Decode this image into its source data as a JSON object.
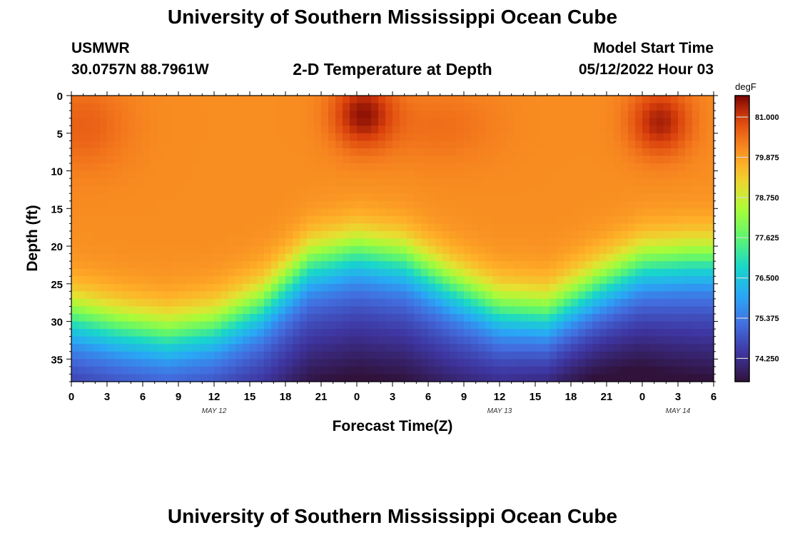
{
  "header": {
    "title": "University of Southern Mississippi Ocean Cube",
    "station": "USMWR",
    "coordinates": "30.0757N  88.7961W",
    "chart_title": "2-D Temperature at Depth",
    "model_label": "Model Start Time",
    "model_time": "05/12/2022 Hour 03"
  },
  "footer": {
    "title": "University of Southern Mississippi Ocean Cube"
  },
  "chart_data": {
    "type": "heatmap",
    "title": "2-D Temperature at Depth",
    "xlabel": "Forecast Time(Z)",
    "ylabel": "Depth (ft)",
    "x_unit": "hours since 2022-05-12 00Z",
    "xlim": [
      0,
      54
    ],
    "ylim": [
      0,
      38
    ],
    "y_inverted": true,
    "x_ticks": [
      0,
      3,
      6,
      9,
      12,
      15,
      18,
      21,
      24,
      27,
      30,
      33,
      36,
      39,
      42,
      45,
      48,
      51,
      54
    ],
    "x_tick_labels": [
      "0",
      "3",
      "6",
      "9",
      "12",
      "15",
      "18",
      "21",
      "0",
      "3",
      "6",
      "9",
      "12",
      "15",
      "18",
      "21",
      "0",
      "3",
      "6"
    ],
    "y_ticks": [
      0,
      5,
      10,
      15,
      20,
      25,
      30,
      35
    ],
    "y_tick_labels": [
      "0",
      "5",
      "10",
      "15",
      "20",
      "25",
      "30",
      "35"
    ],
    "date_labels": [
      {
        "x": 12,
        "label": "MAY 12"
      },
      {
        "x": 36,
        "label": "MAY 13"
      },
      {
        "x": 51,
        "label": "MAY 14"
      }
    ],
    "colorbar": {
      "unit": "degF",
      "min": 73.6,
      "max": 81.6,
      "ticks": [
        81.0,
        79.875,
        78.75,
        77.625,
        76.5,
        75.375,
        74.25
      ],
      "tick_labels": [
        "81.000",
        "79.875",
        "78.750",
        "77.625",
        "76.500",
        "75.375",
        "74.250"
      ]
    },
    "field": {
      "description": "temperature (degF) as a function of forecast hour and depth (ft)",
      "thermocline_depth_ft": {
        "hours": [
          0,
          4,
          8,
          12,
          16,
          20,
          24,
          28,
          32,
          36,
          40,
          44,
          48,
          52,
          54
        ],
        "values": [
          29,
          30.5,
          31.5,
          30.5,
          27.5,
          22,
          20.5,
          21.5,
          25,
          28,
          28.5,
          25,
          22,
          21.5,
          21.5
        ]
      },
      "warm_cores": [
        {
          "hour": 24.5,
          "depth_ft": 2.5,
          "temp_degF": 81.5
        },
        {
          "hour": 49.5,
          "depth_ft": 3.5,
          "temp_degF": 81.4
        }
      ]
    }
  }
}
